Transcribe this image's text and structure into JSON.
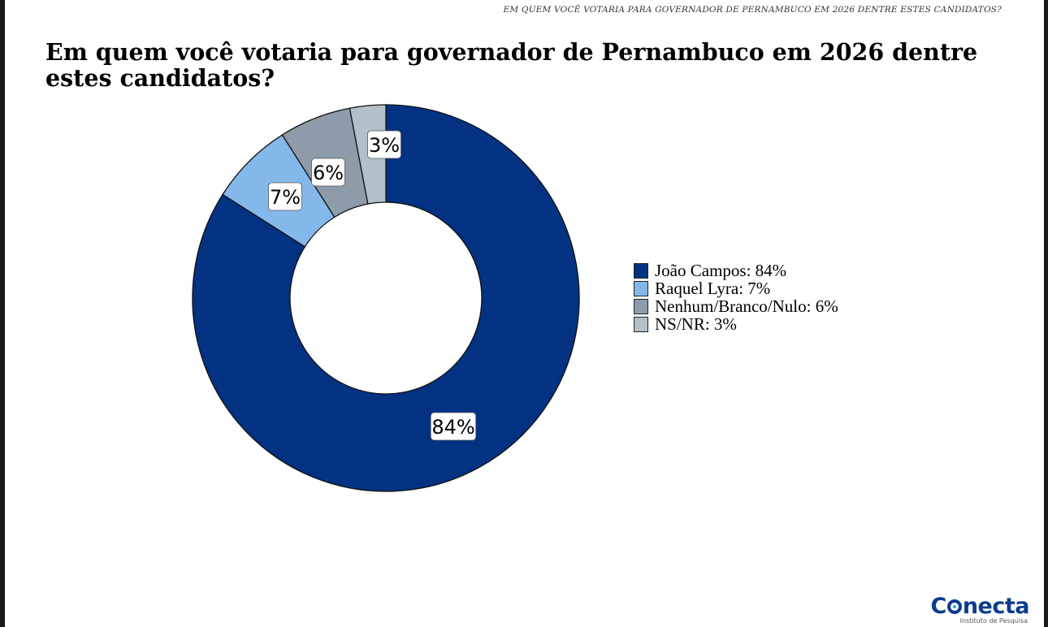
{
  "running_header": "EM QUEM VOCÊ VOTARIA PARA GOVERNADOR DE PERNAMBUCO EM 2026 DENTRE ESTES CANDIDATOS?",
  "chart_data": {
    "type": "pie",
    "variant": "donut",
    "title": "Em quem você votaria para governador de Pernambuco em 2026 dentre estes candidatos?",
    "unit": "%",
    "start": "top",
    "direction": "clockwise",
    "legend_position": "right",
    "slices": [
      {
        "label": "João Campos",
        "value": 84,
        "data_label": "84%",
        "legend": "João Campos: 84%",
        "color": "#033282"
      },
      {
        "label": "Raquel Lyra",
        "value": 7,
        "data_label": "7%",
        "legend": "Raquel Lyra: 7%",
        "color": "#85b8ea"
      },
      {
        "label": "Nenhum/Branco/Nulo",
        "value": 6,
        "data_label": "6%",
        "legend": "Nenhum/Branco/Nulo: 6%",
        "color": "#8d9ca8"
      },
      {
        "label": "NS/NR",
        "value": 3,
        "data_label": "3%",
        "legend": "NS/NR: 3%",
        "color": "#b4c0c9"
      }
    ]
  },
  "logo": {
    "brand_pre": "C",
    "brand_post": "necta",
    "tagline": "Instituto de Pesquisa",
    "color": "#0b3d8c"
  }
}
